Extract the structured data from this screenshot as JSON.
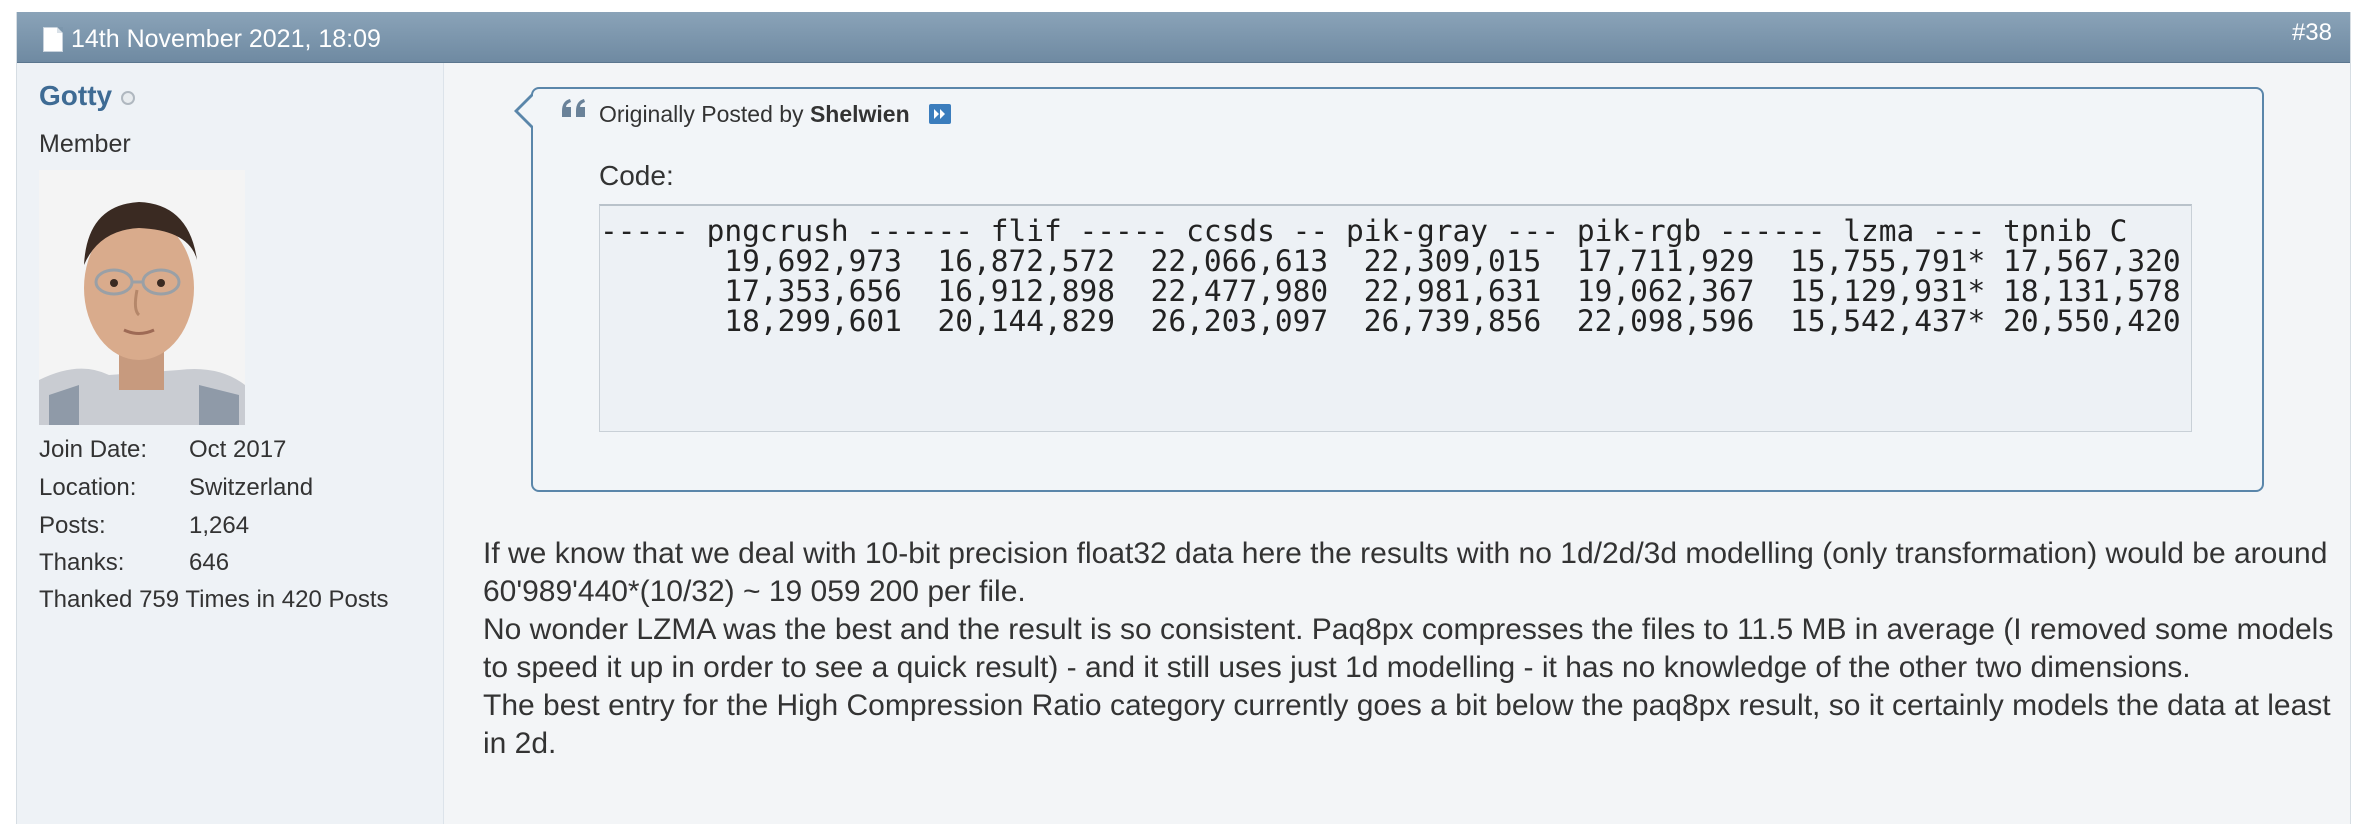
{
  "post": {
    "date": "14th November 2021, 18:09",
    "number": "#38"
  },
  "user": {
    "name": "Gotty",
    "title": "Member",
    "info": [
      {
        "label": "Join Date:",
        "value": "Oct 2017"
      },
      {
        "label": "Location:",
        "value": "Switzerland"
      },
      {
        "label": "Posts:",
        "value": "1,264"
      },
      {
        "label": "Thanks:",
        "value": "646"
      }
    ],
    "thanked": "Thanked 759 Times in 420 Posts"
  },
  "quote": {
    "prefix": "Originally Posted by",
    "author": "Shelwien",
    "code_label": "Code:",
    "code_lines": [
      "----- pngcrush ------ flif ----- ccsds -- pik-gray --- pik-rgb ------ lzma --- tpnib C",
      "       19,692,973  16,872,572  22,066,613  22,309,015  17,711,929  15,755,791* 17,567,320",
      "       17,353,656  16,912,898  22,477,980  22,981,631  19,062,367  15,129,931* 18,131,578",
      "       18,299,601  20,144,829  26,203,097  26,739,856  22,098,596  15,542,437* 20,550,420"
    ]
  },
  "message": {
    "paragraphs": [
      "If we know that we deal with 10-bit precision float32 data here the results with no 1d/2d/3d modelling (only transformation) would be around 60'989'440*(10/32) ~ 19 059 200 per file.",
      "No wonder LZMA was the best and the result is so consistent. Paq8px compresses the files to 11.5 MB in average (I removed some models to speed it up in order to see a quick result) - and it still uses just 1d modelling - it has no knowledge of the other two dimensions.",
      "The best entry for the High Compression Ratio category currently goes a bit below the paq8px result, so it certainly models the data at least in 2d."
    ]
  },
  "colors": {
    "header": "#7f99ae",
    "username": "#3e6b94",
    "quote_border": "#5a86aa"
  }
}
